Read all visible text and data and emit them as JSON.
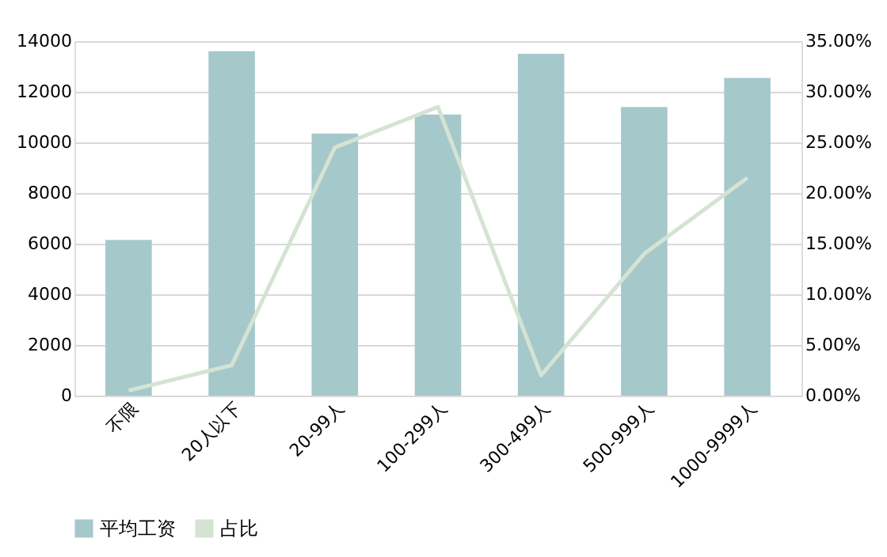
{
  "chart_data": {
    "type": "bar",
    "categories": [
      "不限",
      "20人以下",
      "20-99人",
      "100-299人",
      "300-499人",
      "500-999人",
      "1000-9999人"
    ],
    "series": [
      {
        "name": "平均工资",
        "color": "#a5c8cb",
        "values": [
          6150,
          13600,
          10350,
          11100,
          13500,
          11400,
          12550
        ]
      },
      {
        "name": "占比",
        "type": "line",
        "axis": "y2",
        "color": "#d5e3d3",
        "values": [
          0.5,
          3,
          24.5,
          28.5,
          2,
          14,
          21.5
        ]
      }
    ],
    "ylim": [
      0,
      14000
    ],
    "yticks": [
      0,
      2000,
      4000,
      6000,
      8000,
      10000,
      12000,
      14000
    ],
    "y2lim": [
      0,
      35
    ],
    "y2ticks": [
      {
        "value": 0,
        "label": "0.00%"
      },
      {
        "value": 5,
        "label": "5.00%"
      },
      {
        "value": 10,
        "label": "10.00%"
      },
      {
        "value": 15,
        "label": "15.00%"
      },
      {
        "value": 20,
        "label": "20.00%"
      },
      {
        "value": 25,
        "label": "25.00%"
      },
      {
        "value": 30,
        "label": "30.00%"
      },
      {
        "value": 35,
        "label": "35.00%"
      }
    ],
    "grid": "y",
    "legend": "bottom"
  }
}
